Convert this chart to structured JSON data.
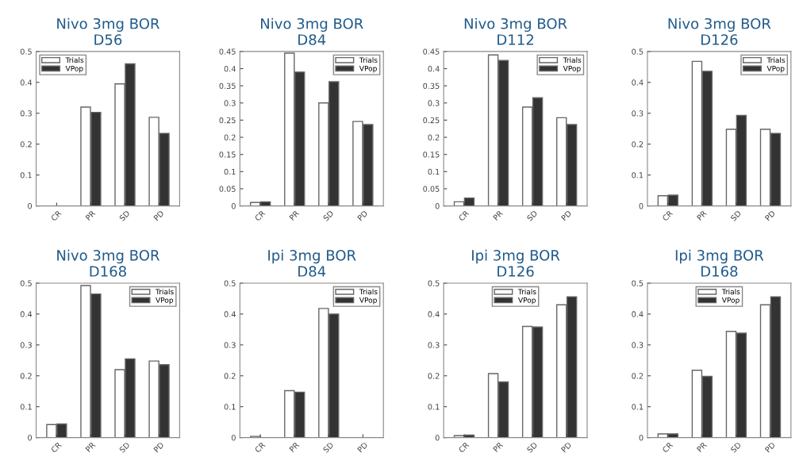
{
  "chart_data": [
    {
      "type": "bar",
      "title": "Nivo 3mg BOR\nD56",
      "categories": [
        "CR",
        "PR",
        "SD",
        "PD"
      ],
      "ylim": [
        0,
        0.5
      ],
      "yticks": [
        0,
        0.1,
        0.2,
        0.3,
        0.4,
        0.5
      ],
      "legend": "top left",
      "grid": false,
      "series": [
        {
          "name": "Trials",
          "color": "#ffffff",
          "values": [
            0,
            0.32,
            0.395,
            0.287
          ]
        },
        {
          "name": "VPop",
          "color": "#333333",
          "values": [
            0,
            0.303,
            0.46,
            0.235
          ]
        }
      ]
    },
    {
      "type": "bar",
      "title": "Nivo 3mg BOR\nD84",
      "categories": [
        "CR",
        "PR",
        "SD",
        "PD"
      ],
      "ylim": [
        0,
        0.45
      ],
      "yticks": [
        0,
        0.05,
        0.1,
        0.15,
        0.2,
        0.25,
        0.3,
        0.35,
        0.4,
        0.45
      ],
      "legend": "top right",
      "grid": false,
      "series": [
        {
          "name": "Trials",
          "color": "#ffffff",
          "values": [
            0.01,
            0.445,
            0.3,
            0.246
          ]
        },
        {
          "name": "VPop",
          "color": "#333333",
          "values": [
            0.012,
            0.39,
            0.362,
            0.237
          ]
        }
      ]
    },
    {
      "type": "bar",
      "title": "Nivo 3mg BOR\nD112",
      "categories": [
        "CR",
        "PR",
        "SD",
        "PD"
      ],
      "ylim": [
        0,
        0.45
      ],
      "yticks": [
        0,
        0.05,
        0.1,
        0.15,
        0.2,
        0.25,
        0.3,
        0.35,
        0.4,
        0.45
      ],
      "legend": "top right",
      "grid": false,
      "series": [
        {
          "name": "Trials",
          "color": "#ffffff",
          "values": [
            0.012,
            0.44,
            0.288,
            0.257
          ]
        },
        {
          "name": "VPop",
          "color": "#333333",
          "values": [
            0.023,
            0.424,
            0.315,
            0.237
          ]
        }
      ]
    },
    {
      "type": "bar",
      "title": "Nivo 3mg BOR\nD126",
      "categories": [
        "CR",
        "PR",
        "SD",
        "PD"
      ],
      "ylim": [
        0,
        0.5
      ],
      "yticks": [
        0,
        0.1,
        0.2,
        0.3,
        0.4,
        0.5
      ],
      "legend": "top right",
      "grid": false,
      "series": [
        {
          "name": "Trials",
          "color": "#ffffff",
          "values": [
            0.033,
            0.468,
            0.248,
            0.248
          ]
        },
        {
          "name": "VPop",
          "color": "#333333",
          "values": [
            0.035,
            0.436,
            0.293,
            0.235
          ]
        }
      ]
    },
    {
      "type": "bar",
      "title": "Nivo 3mg BOR\nD168",
      "categories": [
        "CR",
        "PR",
        "SD",
        "PD"
      ],
      "ylim": [
        0,
        0.5
      ],
      "yticks": [
        0,
        0.1,
        0.2,
        0.3,
        0.4,
        0.5
      ],
      "legend": "top right",
      "grid": false,
      "series": [
        {
          "name": "Trials",
          "color": "#ffffff",
          "values": [
            0.042,
            0.492,
            0.22,
            0.248
          ]
        },
        {
          "name": "VPop",
          "color": "#333333",
          "values": [
            0.044,
            0.465,
            0.255,
            0.236
          ]
        }
      ]
    },
    {
      "type": "bar",
      "title": "Ipi 3mg BOR\nD84",
      "categories": [
        "CR",
        "PR",
        "SD",
        "PD"
      ],
      "ylim": [
        0,
        0.5
      ],
      "yticks": [
        0,
        0.1,
        0.2,
        0.3,
        0.4,
        0.5
      ],
      "legend": "top right",
      "grid": false,
      "series": [
        {
          "name": "Trials",
          "color": "#ffffff",
          "values": [
            0.004,
            0.152,
            0.418,
            null
          ]
        },
        {
          "name": "VPop",
          "color": "#333333",
          "values": [
            0,
            0.147,
            0.4,
            null
          ]
        }
      ]
    },
    {
      "type": "bar",
      "title": "Ipi 3mg BOR\nD126",
      "categories": [
        "CR",
        "PR",
        "SD",
        "PD"
      ],
      "ylim": [
        0,
        0.5
      ],
      "yticks": [
        0,
        0.1,
        0.2,
        0.3,
        0.4,
        0.5
      ],
      "legend": "top",
      "grid": false,
      "series": [
        {
          "name": "Trials",
          "color": "#ffffff",
          "values": [
            0.006,
            0.207,
            0.36,
            0.43
          ]
        },
        {
          "name": "VPop",
          "color": "#333333",
          "values": [
            0.008,
            0.18,
            0.358,
            0.456
          ]
        }
      ]
    },
    {
      "type": "bar",
      "title": "Ipi 3mg BOR\nD168",
      "categories": [
        "CR",
        "PR",
        "SD",
        "PD"
      ],
      "ylim": [
        0,
        0.5
      ],
      "yticks": [
        0,
        0.1,
        0.2,
        0.3,
        0.4,
        0.5
      ],
      "legend": "top",
      "grid": false,
      "series": [
        {
          "name": "Trials",
          "color": "#ffffff",
          "values": [
            0.012,
            0.218,
            0.344,
            0.43
          ]
        },
        {
          "name": "VPop",
          "color": "#333333",
          "values": [
            0.012,
            0.198,
            0.338,
            0.456
          ]
        }
      ]
    }
  ]
}
